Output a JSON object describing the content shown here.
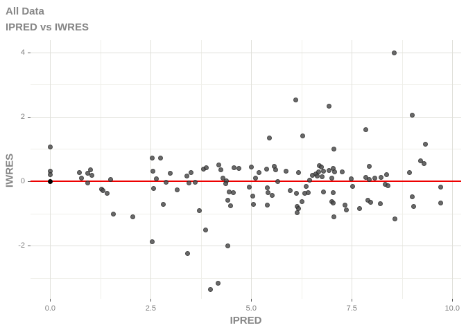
{
  "title": "All Data",
  "subtitle": "IPRED vs IWRES",
  "chart_data": {
    "type": "scatter",
    "title": "All Data",
    "subtitle": "IPRED vs IWRES",
    "xlabel": "IPRED",
    "ylabel": "IWRES",
    "xlim": [
      -0.49,
      10.22
    ],
    "ylim": [
      -3.65,
      4.38
    ],
    "grid": "on",
    "x_major_ticks": {
      "values": [
        0,
        2.5,
        5,
        7.5,
        10
      ],
      "labels": [
        "0.0",
        "2.5",
        "5.0",
        "7.5",
        "10.0"
      ]
    },
    "y_major_ticks": {
      "values": [
        -2,
        0,
        2,
        4
      ],
      "labels": [
        "-2",
        "0",
        "2",
        "4"
      ]
    },
    "x_minor_gridlines": [
      1.25,
      3.75,
      6.25,
      8.75
    ],
    "y_minor_gridlines": [
      -3,
      -1,
      1,
      3
    ],
    "reference_line": {
      "y": 0,
      "color": "#ee0000"
    },
    "points": [
      [
        0.0,
        1.07
      ],
      [
        0.0,
        0.33
      ],
      [
        0.0,
        0.21
      ],
      [
        0.72,
        0.28
      ],
      [
        0.77,
        0.1
      ],
      [
        0.92,
        0.26
      ],
      [
        0.99,
        0.36
      ],
      [
        1.02,
        0.2
      ],
      [
        0.93,
        -0.05
      ],
      [
        1.27,
        -0.23
      ],
      [
        1.31,
        -0.28
      ],
      [
        1.41,
        -0.36
      ],
      [
        1.49,
        0.06
      ],
      [
        1.56,
        -1.01
      ],
      [
        2.04,
        -1.1
      ],
      [
        2.52,
        0.73
      ],
      [
        2.74,
        0.74
      ],
      [
        2.55,
        0.32
      ],
      [
        2.63,
        0.08
      ],
      [
        2.56,
        -0.21
      ],
      [
        2.88,
        -0.02
      ],
      [
        2.98,
        0.26
      ],
      [
        2.81,
        -0.71
      ],
      [
        2.53,
        -1.87
      ],
      [
        3.15,
        -0.25
      ],
      [
        3.39,
        0.17
      ],
      [
        3.49,
        0.27
      ],
      [
        3.44,
        -0.05
      ],
      [
        3.59,
        -0.03
      ],
      [
        3.7,
        -0.91
      ],
      [
        3.41,
        -2.24
      ],
      [
        3.81,
        0.38
      ],
      [
        3.87,
        0.43
      ],
      [
        3.85,
        -1.5
      ],
      [
        3.97,
        -3.34
      ],
      [
        4.18,
        0.52
      ],
      [
        4.24,
        0.37
      ],
      [
        4.29,
        0.1
      ],
      [
        4.38,
        0.03
      ],
      [
        4.36,
        -0.06
      ],
      [
        4.57,
        0.43
      ],
      [
        4.68,
        0.41
      ],
      [
        4.44,
        -0.33
      ],
      [
        4.54,
        -0.34
      ],
      [
        4.4,
        -0.57
      ],
      [
        4.47,
        -0.76
      ],
      [
        4.41,
        -1.99
      ],
      [
        4.17,
        -3.16
      ],
      [
        4.99,
        0.45
      ],
      [
        4.95,
        -0.18
      ],
      [
        5.1,
        0.1
      ],
      [
        5.18,
        0.28
      ],
      [
        5.37,
        0.39
      ],
      [
        5.44,
        1.36
      ],
      [
        5.56,
        0.47
      ],
      [
        5.6,
        0.37
      ],
      [
        5.65,
        0.01
      ],
      [
        5.86,
        0.33
      ],
      [
        5.03,
        -0.46
      ],
      [
        5.05,
        -0.71
      ],
      [
        5.39,
        -0.19
      ],
      [
        5.41,
        -0.35
      ],
      [
        5.52,
        -0.44
      ],
      [
        5.39,
        -0.73
      ],
      [
        5.96,
        -0.28
      ],
      [
        6.1,
        2.53
      ],
      [
        6.27,
        1.42
      ],
      [
        6.17,
        0.27
      ],
      [
        6.11,
        -0.37
      ],
      [
        6.13,
        -0.77
      ],
      [
        6.16,
        -0.84
      ],
      [
        6.13,
        -0.96
      ],
      [
        6.25,
        -0.62
      ],
      [
        6.32,
        -0.37
      ],
      [
        6.4,
        -0.35
      ],
      [
        6.36,
        -0.16
      ],
      [
        6.44,
        0.04
      ],
      [
        6.52,
        0.19
      ],
      [
        6.6,
        0.24
      ],
      [
        6.66,
        0.29
      ],
      [
        6.63,
        0.17
      ],
      [
        6.68,
        0.5
      ],
      [
        6.74,
        0.45
      ],
      [
        6.79,
        0.33
      ],
      [
        6.75,
        0.15
      ],
      [
        6.78,
        -0.32
      ],
      [
        6.92,
        2.35
      ],
      [
        7.05,
        1.0
      ],
      [
        6.93,
        0.34
      ],
      [
        7.03,
        0.4
      ],
      [
        7.06,
        0.31
      ],
      [
        6.99,
        0.1
      ],
      [
        7.25,
        0.31
      ],
      [
        7.47,
        0.08
      ],
      [
        7.52,
        -0.15
      ],
      [
        7.03,
        -0.34
      ],
      [
        7.0,
        -0.62
      ],
      [
        7.03,
        -0.67
      ],
      [
        7.32,
        -0.73
      ],
      [
        7.36,
        -0.87
      ],
      [
        7.05,
        -1.1
      ],
      [
        7.68,
        -0.84
      ],
      [
        7.84,
        1.62
      ],
      [
        7.84,
        0.13
      ],
      [
        7.93,
        0.47
      ],
      [
        7.93,
        0.06
      ],
      [
        8.06,
        0.1
      ],
      [
        7.9,
        -0.59
      ],
      [
        7.96,
        -0.64
      ],
      [
        8.2,
        -0.69
      ],
      [
        8.22,
        0.13
      ],
      [
        8.36,
        0.21
      ],
      [
        8.32,
        -0.09
      ],
      [
        8.4,
        -0.13
      ],
      [
        8.55,
        4.0
      ],
      [
        8.57,
        -1.17
      ],
      [
        8.92,
        0.28
      ],
      [
        8.99,
        2.07
      ],
      [
        9.0,
        -0.48
      ],
      [
        9.03,
        -0.77
      ],
      [
        9.2,
        0.64
      ],
      [
        9.29,
        0.55
      ],
      [
        9.33,
        1.16
      ],
      [
        9.71,
        -0.18
      ],
      [
        9.71,
        -0.66
      ]
    ],
    "special_points": [
      [
        0.0,
        0.0
      ]
    ],
    "colors": {
      "point_fill": "#4f4f4f",
      "point_edge": "#262626",
      "special_point": "#000000",
      "reference_line": "#ee0000",
      "grid_major": "#e0e0da",
      "grid_minor": "#efefe9",
      "tick_mark": "#5a5a5a",
      "tick_label": "#7f7f7f",
      "title_text": "#868686",
      "background": "#ffffff"
    }
  }
}
